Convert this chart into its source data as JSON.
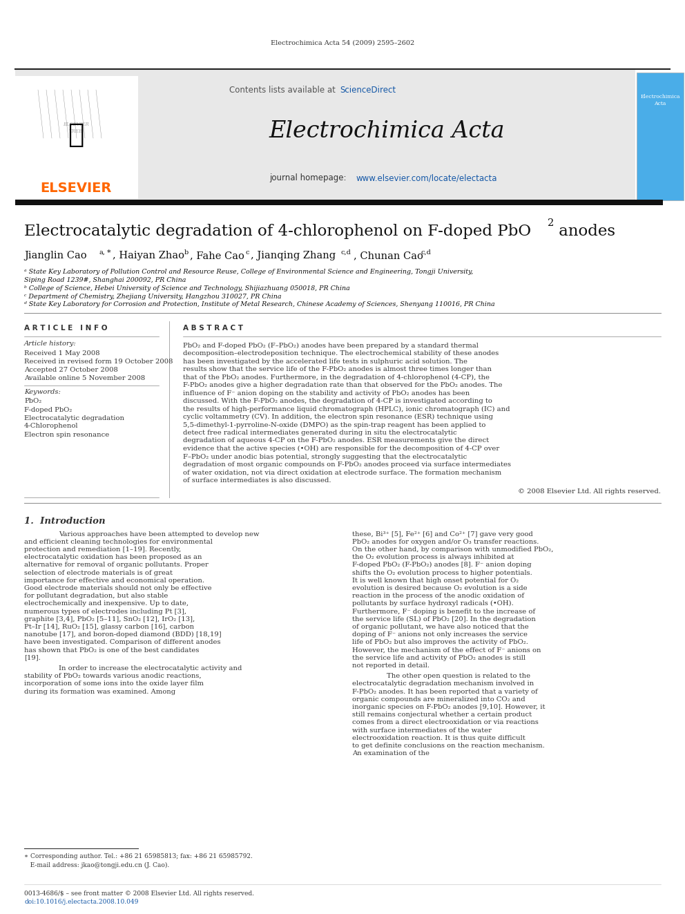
{
  "page_bg": "#ffffff",
  "top_citation": "Electrochimica Acta 54 (2009) 2595–2602",
  "journal_title": "Electrochimica Acta",
  "journal_url": "www.elsevier.com/locate/electacta",
  "contents_text": "Contents lists available at ",
  "sciencedirect_text": "ScienceDirect",
  "elsevier_text": "ELSEVIER",
  "elsevier_color": "#FF6600",
  "sciencedirect_color": "#1558A7",
  "url_color": "#1558A7",
  "header_bg": "#E8E8E8",
  "dark_bar_color": "#111111",
  "cover_bg": "#4AADE8",
  "paper_title1": "Electrocatalytic degradation of 4-chlorophenol on F-doped PbO",
  "paper_title2": " anodes",
  "authors_main": "Jianglin Cao",
  "affil_a_line1": "ᵃ State Key Laboratory of Pollution Control and Resource Reuse, College of Environmental Science and Engineering, Tongji University,",
  "affil_a_line2": "Siping Road 1239#, Shanghai 200092, PR China",
  "affil_b": "ᵇ College of Science, Hebei University of Science and Technology, Shijiazhuang 050018, PR China",
  "affil_c": "ᶜ Department of Chemistry, Zhejiang University, Hangzhou 310027, PR China",
  "affil_d": "ᵈ State Key Laboratory for Corrosion and Protection, Institute of Metal Research, Chinese Academy of Sciences, Shenyang 110016, PR China",
  "article_info_title": "A R T I C L E   I N F O",
  "abstract_title": "A B S T R A C T",
  "article_history_label": "Article history:",
  "received": "Received 1 May 2008",
  "revised": "Received in revised form 19 October 2008",
  "accepted": "Accepted 27 October 2008",
  "available": "Available online 5 November 2008",
  "keywords_label": "Keywords:",
  "keyword1": "PbO₂",
  "keyword2": "F-doped PbO₂",
  "keyword3": "Electrocatalytic degradation",
  "keyword4": "4-Chlorophenol",
  "keyword5": "Electron spin resonance",
  "abstract_text": "PbO₂ and F-doped PbO₂ (F–PbO₂) anodes have been prepared by a standard thermal decomposition–electrodeposition technique. The electrochemical stability of these anodes has been investigated by the accelerated life tests in sulphuric acid solution. The results show that the service life of the F-PbO₂ anodes is almost three times longer than that of the PbO₂ anodes. Furthermore, in the degradation of 4-chlorophenol (4-CP), the F-PbO₂ anodes give a higher degradation rate than that observed for the PbO₂ anodes. The influence of F⁻ anion doping on the stability and activity of PbO₂ anodes has been discussed. With the F-PbO₂ anodes, the degradation of 4-CP is investigated according to the results of high-performance liquid chromatograph (HPLC), ionic chromatograph (IC) and cyclic voltammetry (CV). In addition, the electron spin resonance (ESR) technique using 5,5-dimethyl-1-pyrroline-N-oxide (DMPO) as the spin-trap reagent has been applied to detect free radical intermediates generated during in situ the electrocatalytic degradation of aqueous 4-CP on the F-PbO₂ anodes. ESR measurements give the direct evidence that the active species (•OH) are responsible for the decomposition of 4-CP over F–PbO₂ under anodic bias potential, strongly suggesting that the electrocatalytic degradation of most organic compounds on F-PbO₂ anodes proceed via surface intermediates of water oxidation, not via direct oxidation at electrode surface. The formation mechanism of surface intermediates is also discussed.",
  "copyright": "© 2008 Elsevier Ltd. All rights reserved.",
  "intro_section": "1.  Introduction",
  "intro_p1": "Various approaches have been attempted to develop new and efficient cleaning technologies for environmental protection and remediation [1–19]. Recently, electrocatalytic oxidation has been proposed as an alternative for removal of organic pollutants. Proper selection of electrode materials is of great importance for effective and economical operation. Good electrode materials should not only be effective for pollutant degradation, but also stable electrochemically and inexpensive. Up to date, numerous types of electrodes including Pt [3], graphite [3,4], PbO₂ [5–11], SnO₂ [12], IrO₂ [13], Pt–Ir [14], RuO₂ [15], glassy carbon [16], carbon nanotube [17], and boron-doped diamond (BDD) [18,19] have been investigated. Comparison of different anodes has shown that PbO₂ is one of the best candidates [19].",
  "intro_p2": "In order to increase the electrocatalytic activity and stability of PbO₂ towards various anodic reactions, incorporation of some ions into the oxide layer film during its formation was examined. Among",
  "intro_p3": "these, Bi³⁺ [5], Fe²⁺ [6] and Co²⁺ [7] gave very good PbO₂ anodes for oxygen and/or O₃ transfer reactions. On the other hand, by comparison with unmodified PbO₂, the O₂ evolution process is always inhibited at F-doped PbO₂ (F-PbO₂) anodes [8]. F⁻ anion doping shifts the O₂ evolution process to higher potentials. It is well known that high onset potential for O₂ evolution is desired because O₂ evolution is a side reaction in the process of the anodic oxidation of pollutants by surface hydroxyl radicals (•OH). Furthermore, F⁻ doping is benefit to the increase of the service life (SL) of PbO₂ [20]. In the degradation of organic pollutant, we have also noticed that the doping of F⁻ anions not only increases the service life of PbO₂ but also improves the activity of PbO₂. However, the mechanism of the effect of F⁻ anions on the service life and activity of PbO₂ anodes is still not reported in detail.",
  "intro_p4": "The other open question is related to the electrocatalytic degradation mechanism involved in F-PbO₂ anodes. It has been reported that a variety of organic compounds are mineralized into CO₂ and inorganic species on F-PbO₂ anodes [9,10]. However, it still remains conjectural whether a certain product comes from a direct electrooxidation or via reactions with surface intermediates of the water electrooxidation reaction. It is thus quite difficult to get definite conclusions on the reaction mechanism. An examination of the",
  "footnote_star": "∗ Corresponding author. Tel.: +86 21 65985813; fax: +86 21 65985792.",
  "footnote_email": "   E-mail address: jkao@tongji.edu.cn (J. Cao).",
  "issn_line": "0013-4686/$ – see front matter © 2008 Elsevier Ltd. All rights reserved.",
  "doi_line": "doi:10.1016/j.electacta.2008.10.049"
}
